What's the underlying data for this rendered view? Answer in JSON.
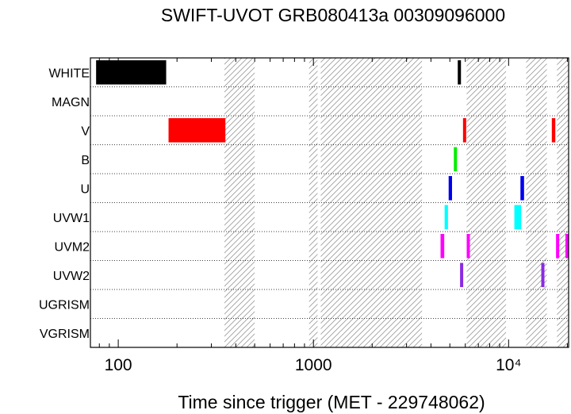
{
  "chart_data": {
    "type": "timeline",
    "title": "SWIFT-UVOT GRB080413a 00309096000",
    "xlabel": "Time since trigger (MET - 229748062)",
    "ylabel": "",
    "x_scale": "log",
    "xlim": [
      72,
      20300
    ],
    "grid": "dotted row separators",
    "x_ticks": [
      {
        "value": 100,
        "label": "100"
      },
      {
        "value": 1000,
        "label": "1000"
      },
      {
        "value": 10000,
        "label": "10⁴"
      }
    ],
    "filters": [
      "WHITE",
      "MAGN",
      "V",
      "B",
      "U",
      "UVW1",
      "UVM2",
      "UVW2",
      "UGRISM",
      "VGRISM"
    ],
    "gaps": [
      [
        350,
        500
      ],
      [
        950,
        1050
      ],
      [
        1090,
        3600
      ],
      [
        6100,
        9700
      ],
      [
        12300,
        15700
      ],
      [
        17700,
        20300
      ]
    ],
    "exposures": [
      {
        "filter": "WHITE",
        "start": 77,
        "end": 176,
        "color": "#000000"
      },
      {
        "filter": "WHITE",
        "start": 5490,
        "end": 5700,
        "color": "#000000"
      },
      {
        "filter": "V",
        "start": 181,
        "end": 354,
        "color": "#ff0000"
      },
      {
        "filter": "V",
        "start": 5840,
        "end": 6030,
        "color": "#ff0000"
      },
      {
        "filter": "V",
        "start": 16650,
        "end": 17350,
        "color": "#ff0000"
      },
      {
        "filter": "B",
        "start": 5240,
        "end": 5440,
        "color": "#00ee00"
      },
      {
        "filter": "U",
        "start": 4930,
        "end": 5130,
        "color": "#0000ee"
      },
      {
        "filter": "U",
        "start": 11500,
        "end": 12000,
        "color": "#0000ee"
      },
      {
        "filter": "UVW1",
        "start": 4700,
        "end": 4890,
        "color": "#00ffff"
      },
      {
        "filter": "UVW1",
        "start": 10700,
        "end": 11600,
        "color": "#00ffff"
      },
      {
        "filter": "UVM2",
        "start": 4480,
        "end": 4680,
        "color": "#ff00ff"
      },
      {
        "filter": "UVM2",
        "start": 6100,
        "end": 6250,
        "color": "#ff00ff"
      },
      {
        "filter": "UVM2",
        "start": 17500,
        "end": 17900,
        "color": "#ff00ff"
      },
      {
        "filter": "UVM2",
        "start": 19750,
        "end": 20300,
        "color": "#ff00ff"
      },
      {
        "filter": "UVW2",
        "start": 5640,
        "end": 5820,
        "color": "#8a2be2"
      },
      {
        "filter": "UVW2",
        "start": 14700,
        "end": 15150,
        "color": "#8a2be2"
      }
    ]
  }
}
